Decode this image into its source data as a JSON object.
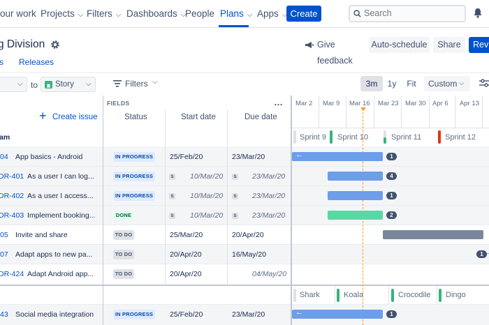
{
  "nav": {
    "your_work": "our work",
    "projects": "Projects",
    "filters": "Filters",
    "dashboards": "Dashboards",
    "people": "People",
    "plans": "Plans",
    "apps": "Apps",
    "create": "Create",
    "search_placeholder": "Search"
  },
  "header": {
    "title": "g Division",
    "give_feedback": "Give feedback",
    "auto_schedule": "Auto-schedule",
    "share": "Share",
    "review": "Revi"
  },
  "tabs": {
    "first": "s",
    "releases": "Releases"
  },
  "toolbar": {
    "to": "to",
    "story": "Story",
    "filters": "Filters",
    "range_3m": "3m",
    "range_1y": "1y",
    "fit": "Fit",
    "custom": "Custom"
  },
  "columns": {
    "fields": "FIELDS",
    "create_issue": "Create issue",
    "status": "Status",
    "start_date": "Start date",
    "due_date": "Due date",
    "team": "am"
  },
  "timeline": {
    "months": [
      "Mar 2",
      "Mar 9",
      "Mar 16",
      "Mar 23",
      "Mar 30",
      "Apr 6",
      "Apr 13"
    ],
    "sprints": [
      "Sprint 9",
      "Sprint 10",
      "Sprint 11",
      "Sprint 12"
    ],
    "teams": [
      "Shark",
      "Koala",
      "Crocodile",
      "Dingo"
    ]
  },
  "rows": [
    {
      "key": "04",
      "title": "App basics - Android",
      "status": "IN PROGRESS",
      "start": "25/Feb/20",
      "due": "23/Mar/20",
      "count": "1"
    },
    {
      "key": "DR-401",
      "title": "As a user I can log...",
      "status": "IN PROGRESS",
      "start": "10/Mar/20",
      "due": "23/Mar/20",
      "count": "4"
    },
    {
      "key": "DR-402",
      "title": "As a user I access...",
      "status": "IN PROGRESS",
      "start": "10/Mar/20",
      "due": "23/Mar/20",
      "count": "1"
    },
    {
      "key": "DR-403",
      "title": "Implement booking...",
      "status": "DONE",
      "start": "10/Mar/20",
      "due": "23/Mar/20",
      "count": "2"
    },
    {
      "key": "05",
      "title": "Invite and share",
      "status": "TO DO",
      "start": "25/Mar/20",
      "due": "20/Apr/20"
    },
    {
      "key": "07",
      "title": "Adapt apps to new pa...",
      "status": "TO DO",
      "start": "20/Apr/20",
      "due": "16/May/20",
      "count": "1"
    },
    {
      "key": "DR-424",
      "title": "Adapt Android app...",
      "status": "TO DO",
      "start": "20/Apr/20",
      "due": "04/May/20"
    },
    {
      "key": "43",
      "title": "Social media integration",
      "status": "IN PROGRESS",
      "start": "25/Feb/20",
      "due": "23/Mar/20",
      "count": "1"
    }
  ],
  "sprint_badge": "S",
  "colors": {
    "accent": "#0052cc",
    "bar_blue": "#6c9eea",
    "bar_green": "#57d9a3",
    "bar_grey": "#7a869a",
    "today": "#ff991f"
  }
}
